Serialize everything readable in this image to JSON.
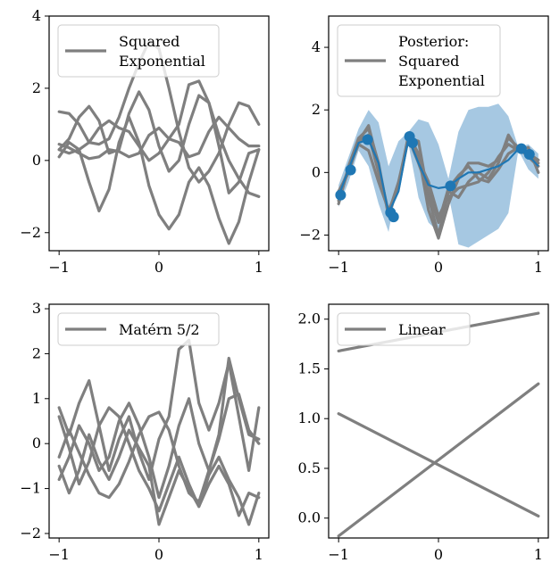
{
  "colors": {
    "gray": "#7f7f7f",
    "blue": "#1f77b4",
    "band": "#a6c8e2",
    "legend_border": "#cccccc"
  },
  "chart_data": [
    {
      "type": "line",
      "id": "se",
      "xlim": [
        -1.1,
        1.1
      ],
      "ylim": [
        -2.5,
        4.0
      ],
      "xticks": [
        -1,
        0,
        1
      ],
      "yticks": [
        -2,
        0,
        2,
        4
      ],
      "legend": {
        "label_lines": [
          "Squared",
          "Exponential"
        ],
        "position": "top-left"
      },
      "x": [
        -1,
        -0.9,
        -0.8,
        -0.7,
        -0.6,
        -0.5,
        -0.4,
        -0.3,
        -0.2,
        -0.1,
        0,
        0.1,
        0.2,
        0.3,
        0.4,
        0.5,
        0.6,
        0.7,
        0.8,
        0.9,
        1
      ],
      "series": [
        {
          "values": [
            1.35,
            1.3,
            1.0,
            0.5,
            0.45,
            0.6,
            1.2,
            2.0,
            2.7,
            3.3,
            3.1,
            2.0,
            0.8,
            -0.2,
            -0.6,
            -0.3,
            0.2,
            1.0,
            1.6,
            1.5,
            1.0
          ]
        },
        {
          "values": [
            0.3,
            0.6,
            1.2,
            1.5,
            1.1,
            0.2,
            0.3,
            1.3,
            1.9,
            1.4,
            0.4,
            -0.3,
            0.0,
            1.0,
            1.8,
            1.6,
            0.4,
            -0.9,
            -0.6,
            0.2,
            0.3
          ]
        },
        {
          "values": [
            0.1,
            0.5,
            0.3,
            -0.6,
            -1.4,
            -0.8,
            0.5,
            1.2,
            0.5,
            -0.7,
            -1.5,
            -1.9,
            -1.5,
            -0.6,
            -0.2,
            -0.7,
            -1.6,
            -2.3,
            -1.7,
            -0.6,
            0.3
          ]
        },
        {
          "values": [
            0.45,
            0.35,
            0.2,
            0.05,
            0.1,
            0.3,
            0.25,
            0.1,
            0.2,
            0.7,
            0.9,
            0.6,
            1.0,
            2.1,
            2.2,
            1.6,
            0.7,
            0.0,
            -0.5,
            -0.9,
            -1.0
          ]
        },
        {
          "values": [
            0.3,
            0.2,
            0.3,
            0.5,
            0.9,
            1.1,
            0.9,
            0.8,
            0.4,
            0.0,
            0.2,
            0.6,
            0.5,
            0.1,
            0.2,
            0.8,
            1.2,
            0.9,
            0.6,
            0.4,
            0.4
          ]
        }
      ]
    },
    {
      "type": "line",
      "id": "posterior",
      "xlim": [
        -1.1,
        1.1
      ],
      "ylim": [
        -2.5,
        5.0
      ],
      "xticks": [
        -1,
        0,
        1
      ],
      "yticks": [
        -2,
        0,
        2,
        4
      ],
      "legend": {
        "label_lines": [
          "Posterior:",
          "Squared",
          "Exponential"
        ],
        "position": "top-left"
      },
      "band": {
        "x": [
          -1,
          -0.9,
          -0.8,
          -0.7,
          -0.6,
          -0.5,
          -0.4,
          -0.3,
          -0.2,
          -0.1,
          0,
          0.1,
          0.2,
          0.3,
          0.4,
          0.5,
          0.6,
          0.7,
          0.8,
          0.9,
          1
        ],
        "upper": [
          -0.4,
          0.5,
          1.4,
          2.0,
          1.6,
          0.2,
          1.0,
          1.3,
          1.7,
          1.6,
          0.9,
          -0.2,
          1.3,
          2.0,
          2.1,
          2.1,
          2.2,
          1.8,
          0.8,
          0.9,
          0.6
        ],
        "lower": [
          -1.1,
          -0.3,
          0.7,
          0.2,
          -1.0,
          -1.9,
          -0.2,
          0.9,
          -0.8,
          -1.6,
          -1.9,
          -0.7,
          -2.3,
          -2.4,
          -2.2,
          -2.0,
          -1.8,
          -1.3,
          0.7,
          0.1,
          -0.2
        ]
      },
      "mean": {
        "x": [
          -1,
          -0.9,
          -0.8,
          -0.7,
          -0.6,
          -0.5,
          -0.4,
          -0.3,
          -0.2,
          -0.1,
          0,
          0.1,
          0.2,
          0.3,
          0.4,
          0.5,
          0.6,
          0.7,
          0.8,
          0.9,
          1
        ],
        "values": [
          -0.75,
          0.1,
          0.95,
          1.05,
          0.3,
          -1.3,
          -0.6,
          1.1,
          0.3,
          -0.4,
          -0.5,
          -0.45,
          -0.2,
          0.0,
          0.0,
          0.1,
          0.2,
          0.4,
          0.75,
          0.55,
          0.2
        ]
      },
      "samples_x": [
        -1,
        -0.9,
        -0.8,
        -0.7,
        -0.6,
        -0.5,
        -0.4,
        -0.3,
        -0.2,
        -0.1,
        0,
        0.1,
        0.2,
        0.3,
        0.4,
        0.5,
        0.6,
        0.7,
        0.8,
        0.9,
        1
      ],
      "series": [
        {
          "values": [
            -1.0,
            0.2,
            1.1,
            1.4,
            0.3,
            -1.4,
            -0.4,
            1.2,
            0.6,
            -1.2,
            -2.1,
            -1.0,
            -0.2,
            0.3,
            0.3,
            0.2,
            0.4,
            1.1,
            0.8,
            0.6,
            0.3
          ]
        },
        {
          "values": [
            -0.6,
            0.0,
            1.0,
            1.5,
            0.2,
            -1.3,
            -0.3,
            1.1,
            1.0,
            -0.8,
            -2.0,
            -0.6,
            -0.8,
            -0.3,
            0.0,
            -0.2,
            0.3,
            1.2,
            0.7,
            0.6,
            0.4
          ]
        },
        {
          "values": [
            -0.9,
            0.1,
            0.9,
            0.7,
            -0.3,
            -1.2,
            -0.5,
            1.2,
            0.4,
            -0.3,
            -1.4,
            -0.8,
            -0.5,
            -0.4,
            -0.3,
            0.0,
            0.5,
            0.9,
            0.7,
            0.8,
            0.0
          ]
        },
        {
          "values": [
            -0.7,
            0.1,
            1.0,
            1.2,
            0.0,
            -1.3,
            -0.4,
            1.1,
            0.3,
            -0.6,
            -1.6,
            -0.5,
            -0.1,
            0.2,
            -0.2,
            -0.3,
            0.1,
            0.6,
            0.8,
            0.5,
            0.2
          ]
        }
      ],
      "observations": [
        {
          "x": -0.98,
          "y": -0.72
        },
        {
          "x": -0.88,
          "y": 0.08
        },
        {
          "x": -0.71,
          "y": 1.05
        },
        {
          "x": -0.48,
          "y": -1.28
        },
        {
          "x": -0.45,
          "y": -1.42
        },
        {
          "x": -0.29,
          "y": 1.15
        },
        {
          "x": -0.26,
          "y": 0.95
        },
        {
          "x": 0.12,
          "y": -0.43
        },
        {
          "x": 0.83,
          "y": 0.76
        },
        {
          "x": 0.91,
          "y": 0.58
        }
      ]
    },
    {
      "type": "line",
      "id": "matern",
      "xlim": [
        -1.1,
        1.1
      ],
      "ylim": [
        -2.1,
        3.1
      ],
      "xticks": [
        -1,
        0,
        1
      ],
      "yticks": [
        -2,
        -1,
        0,
        1,
        2,
        3
      ],
      "legend": {
        "label_lines": [
          "Matérn 5/2"
        ],
        "position": "top-left"
      },
      "x": [
        -1,
        -0.9,
        -0.8,
        -0.7,
        -0.6,
        -0.5,
        -0.4,
        -0.3,
        -0.2,
        -0.1,
        0,
        0.1,
        0.2,
        0.3,
        0.4,
        0.5,
        0.6,
        0.7,
        0.8,
        0.9,
        1
      ],
      "series": [
        {
          "values": [
            0.8,
            0.2,
            0.9,
            1.4,
            0.4,
            -0.6,
            0.1,
            0.6,
            -0.2,
            -0.8,
            0.1,
            0.6,
            2.1,
            2.3,
            0.9,
            0.3,
            0.9,
            1.8,
            0.6,
            -0.6,
            0.8
          ]
        },
        {
          "values": [
            -0.8,
            -0.3,
            0.4,
            0.0,
            -0.6,
            -0.3,
            0.5,
            0.9,
            0.4,
            -0.3,
            -1.2,
            -0.5,
            0.4,
            1.0,
            0.0,
            -0.6,
            0.1,
            1.0,
            1.1,
            0.3,
            0.0
          ]
        },
        {
          "values": [
            -0.3,
            0.3,
            -0.2,
            -0.7,
            -1.1,
            -1.2,
            -0.9,
            -0.4,
            0.2,
            0.6,
            0.7,
            0.3,
            -0.5,
            -1.1,
            -1.3,
            -0.6,
            0.2,
            1.9,
            1.0,
            0.2,
            0.1
          ]
        },
        {
          "values": [
            0.6,
            -0.1,
            -0.9,
            -0.4,
            0.4,
            0.8,
            0.6,
            0.0,
            -0.6,
            -1.0,
            -1.5,
            -0.9,
            -0.3,
            -0.9,
            -1.4,
            -0.7,
            -0.3,
            -0.8,
            -1.2,
            -1.8,
            -1.1
          ]
        },
        {
          "values": [
            -0.5,
            -1.1,
            -0.6,
            0.2,
            -0.4,
            -0.8,
            -0.3,
            0.3,
            -0.1,
            -0.5,
            -1.8,
            -1.2,
            -0.6,
            -1.0,
            -1.4,
            -0.9,
            -0.5,
            -0.9,
            -1.6,
            -1.1,
            -1.2
          ]
        }
      ]
    },
    {
      "type": "line",
      "id": "linear",
      "xlim": [
        -1.1,
        1.1
      ],
      "ylim": [
        -0.2,
        2.15
      ],
      "xticks": [
        -1,
        0,
        1
      ],
      "yticks": [
        0.0,
        0.5,
        1.0,
        1.5,
        2.0
      ],
      "ytick_labels": [
        "0.0",
        "0.5",
        "1.0",
        "1.5",
        "2.0"
      ],
      "legend": {
        "label_lines": [
          "Linear"
        ],
        "position": "top-left"
      },
      "x": [
        -1,
        1
      ],
      "series": [
        {
          "values": [
            1.68,
            2.06
          ]
        },
        {
          "values": [
            1.05,
            0.02
          ]
        },
        {
          "values": [
            -0.18,
            1.35
          ]
        }
      ]
    }
  ]
}
